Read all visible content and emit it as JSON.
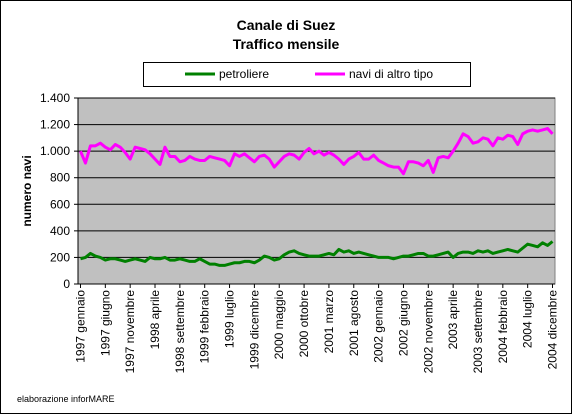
{
  "chart_data": {
    "type": "line",
    "title": "Canale di Suez",
    "subtitle": "Traffico mensile",
    "y_label": "numero navi",
    "source": "elaborazione inforMARE",
    "categories": [
      "1997 gennaio",
      null,
      null,
      null,
      null,
      "1997 giugno",
      null,
      null,
      null,
      null,
      "1997 novembre",
      null,
      null,
      null,
      null,
      "1998 aprile",
      null,
      null,
      null,
      null,
      "1998 settembre",
      null,
      null,
      null,
      null,
      "1999 febbraio",
      null,
      null,
      null,
      null,
      "1999 luglio",
      null,
      null,
      null,
      null,
      "1999 dicembre",
      null,
      null,
      null,
      null,
      "2000 maggio",
      null,
      null,
      null,
      null,
      "2000 ottobre",
      null,
      null,
      null,
      null,
      "2001 marzo",
      null,
      null,
      null,
      null,
      "2001 agosto",
      null,
      null,
      null,
      null,
      "2002 gennaio",
      null,
      null,
      null,
      null,
      "2002 giugno",
      null,
      null,
      null,
      null,
      "2002 novembre",
      null,
      null,
      null,
      null,
      "2003 aprile",
      null,
      null,
      null,
      null,
      "2003 settembre",
      null,
      null,
      null,
      null,
      "2004 febbraio",
      null,
      null,
      null,
      null,
      "2004 luglio",
      null,
      null,
      null,
      null,
      "2004 dicembre"
    ],
    "series": [
      {
        "name": "petroliere",
        "color": "#008000",
        "values": [
          190,
          200,
          230,
          210,
          200,
          180,
          190,
          190,
          180,
          170,
          180,
          190,
          180,
          170,
          200,
          190,
          190,
          200,
          180,
          180,
          190,
          180,
          170,
          170,
          190,
          170,
          150,
          150,
          140,
          140,
          150,
          160,
          160,
          170,
          170,
          160,
          180,
          210,
          200,
          180,
          190,
          220,
          240,
          250,
          230,
          220,
          210,
          210,
          210,
          220,
          230,
          220,
          260,
          240,
          250,
          230,
          240,
          230,
          220,
          210,
          200,
          200,
          200,
          190,
          200,
          210,
          210,
          220,
          230,
          230,
          210,
          210,
          220,
          230,
          240,
          200,
          230,
          240,
          240,
          230,
          250,
          240,
          250,
          230,
          240,
          250,
          260,
          250,
          240,
          270,
          300,
          290,
          280,
          310,
          290,
          320
        ]
      },
      {
        "name": "navi di altro tipo",
        "color": "#ff00ff",
        "values": [
          1000,
          910,
          1040,
          1040,
          1060,
          1030,
          1010,
          1050,
          1030,
          990,
          940,
          1030,
          1020,
          1010,
          980,
          940,
          900,
          1030,
          960,
          960,
          920,
          930,
          960,
          940,
          930,
          930,
          960,
          950,
          940,
          930,
          890,
          980,
          960,
          980,
          950,
          920,
          960,
          970,
          940,
          880,
          920,
          960,
          980,
          970,
          940,
          990,
          1020,
          980,
          1000,
          970,
          990,
          970,
          940,
          900,
          940,
          960,
          990,
          940,
          940,
          970,
          930,
          910,
          890,
          880,
          880,
          830,
          920,
          920,
          910,
          890,
          930,
          840,
          950,
          960,
          950,
          1000,
          1060,
          1130,
          1110,
          1060,
          1070,
          1100,
          1090,
          1040,
          1100,
          1090,
          1120,
          1110,
          1050,
          1130,
          1150,
          1160,
          1150,
          1160,
          1170,
          1130
        ]
      }
    ],
    "ylim": [
      0,
      1400
    ],
    "yticks": [
      0,
      200,
      400,
      600,
      800,
      {
        "value": 1000,
        "label": "1.000"
      },
      {
        "value": 1200,
        "label": "1.200"
      },
      {
        "value": 1400,
        "label": "1.400"
      }
    ],
    "grid": true,
    "legend": "top"
  }
}
